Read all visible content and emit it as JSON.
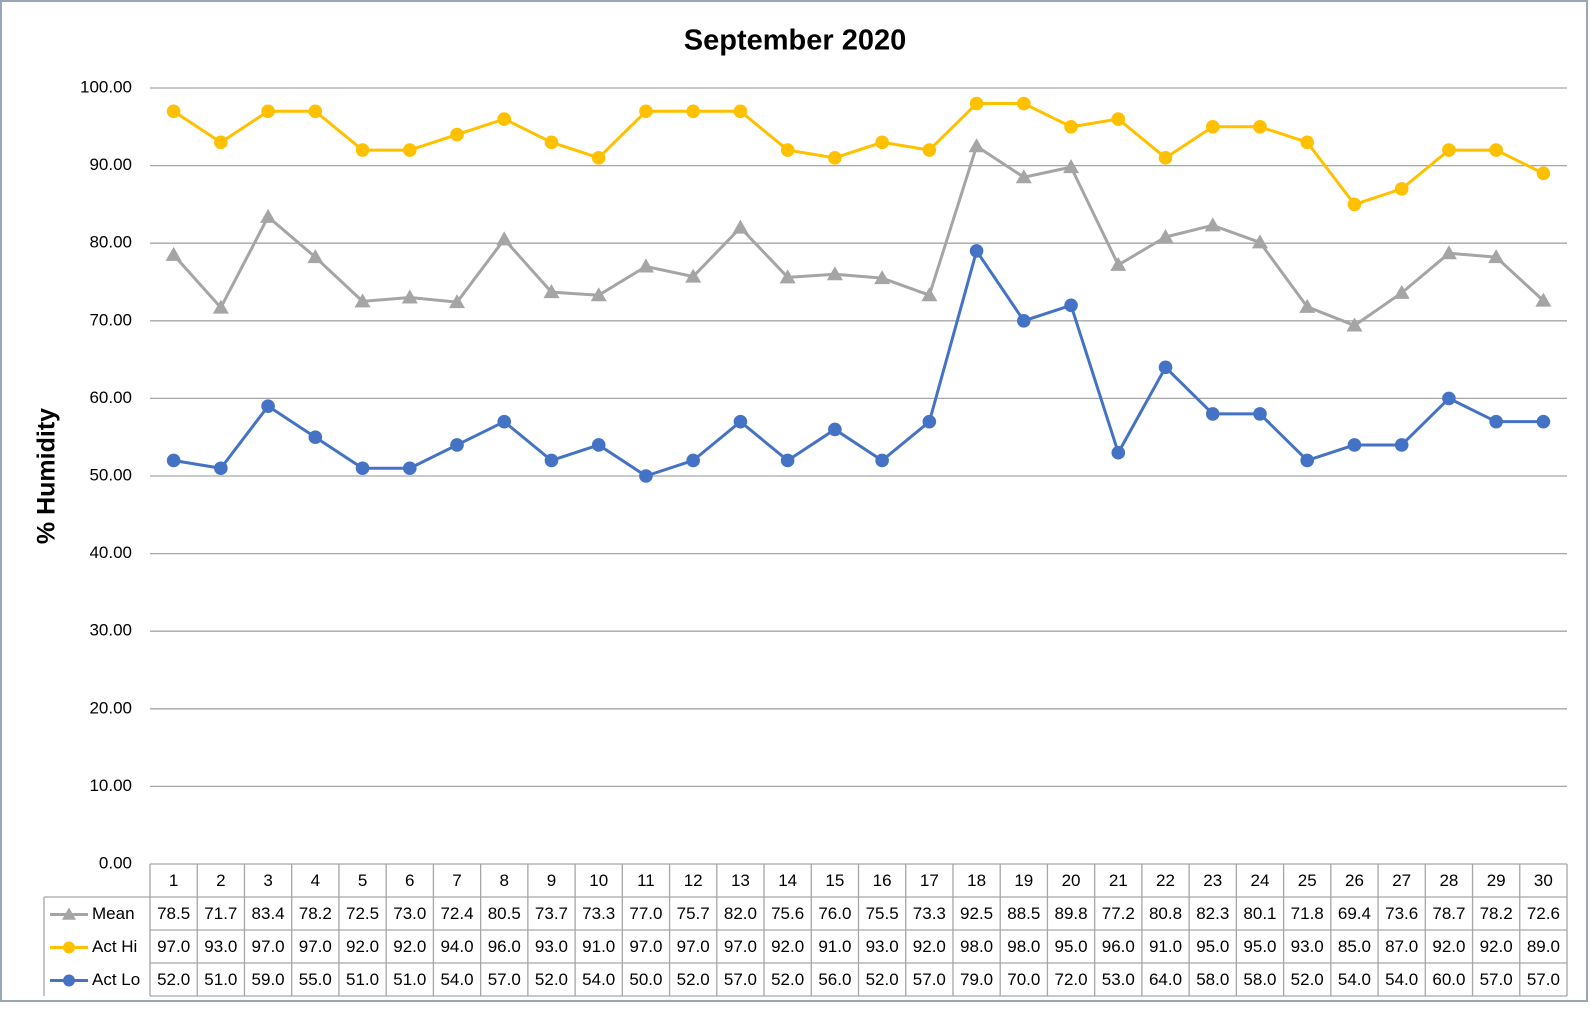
{
  "chart_data": {
    "type": "line",
    "title": "September 2020",
    "y_label": "% Humidity",
    "categories": [
      "1",
      "2",
      "3",
      "4",
      "5",
      "6",
      "7",
      "8",
      "9",
      "10",
      "11",
      "12",
      "13",
      "14",
      "15",
      "16",
      "17",
      "18",
      "19",
      "20",
      "21",
      "22",
      "23",
      "24",
      "25",
      "26",
      "27",
      "28",
      "29",
      "30"
    ],
    "series": [
      {
        "name": "Mean",
        "color": "#a5a5a5",
        "marker": "triangle",
        "values": [
          78.5,
          71.7,
          83.4,
          78.2,
          72.5,
          73.0,
          72.4,
          80.5,
          73.7,
          73.3,
          77.0,
          75.7,
          82.0,
          75.6,
          76.0,
          75.5,
          73.3,
          92.5,
          88.5,
          89.8,
          77.2,
          80.8,
          82.3,
          80.1,
          71.8,
          69.4,
          73.6,
          78.7,
          78.2,
          72.6
        ],
        "value_labels": [
          "78.5",
          "71.7",
          "83.4",
          "78.2",
          "72.5",
          "73.0",
          "72.4",
          "80.5",
          "73.7",
          "73.3",
          "77.0",
          "75.7",
          "82.0",
          "75.6",
          "76.0",
          "75.5",
          "73.3",
          "92.5",
          "88.5",
          "89.8",
          "77.2",
          "80.8",
          "82.3",
          "80.1",
          "71.8",
          "69.4",
          "73.6",
          "78.7",
          "78.2",
          "72.6"
        ]
      },
      {
        "name": "Act Hi",
        "color": "#ffc000",
        "marker": "circle",
        "values": [
          97,
          93,
          97,
          97,
          92,
          92,
          94,
          96,
          93,
          91,
          97,
          97,
          97,
          92,
          91,
          93,
          92,
          98,
          98,
          95,
          96,
          91,
          95,
          95,
          93,
          85,
          87,
          92,
          92,
          89
        ],
        "value_labels": [
          "97.0",
          "93.0",
          "97.0",
          "97.0",
          "92.0",
          "92.0",
          "94.0",
          "96.0",
          "93.0",
          "91.0",
          "97.0",
          "97.0",
          "97.0",
          "92.0",
          "91.0",
          "93.0",
          "92.0",
          "98.0",
          "98.0",
          "95.0",
          "96.0",
          "91.0",
          "95.0",
          "95.0",
          "93.0",
          "85.0",
          "87.0",
          "92.0",
          "92.0",
          "89.0"
        ]
      },
      {
        "name": "Act Lo",
        "color": "#4472c4",
        "marker": "circle",
        "values": [
          52,
          51,
          59,
          55,
          51,
          51,
          54,
          57,
          52,
          54,
          50,
          52,
          57,
          52,
          56,
          52,
          57,
          79,
          70,
          72,
          53,
          64,
          58,
          58,
          52,
          54,
          54,
          60,
          57,
          57
        ],
        "value_labels": [
          "52.0",
          "51.0",
          "59.0",
          "55.0",
          "51.0",
          "51.0",
          "54.0",
          "57.0",
          "52.0",
          "54.0",
          "50.0",
          "52.0",
          "57.0",
          "52.0",
          "56.0",
          "52.0",
          "57.0",
          "79.0",
          "70.0",
          "72.0",
          "53.0",
          "64.0",
          "58.0",
          "58.0",
          "52.0",
          "54.0",
          "54.0",
          "60.0",
          "57.0",
          "57.0"
        ]
      }
    ],
    "ylim": [
      0,
      100
    ],
    "yticks": [
      {
        "value": 0,
        "label": "0.00"
      },
      {
        "value": 10,
        "label": "10.00"
      },
      {
        "value": 20,
        "label": "20.00"
      },
      {
        "value": 30,
        "label": "30.00"
      },
      {
        "value": 40,
        "label": "40.00"
      },
      {
        "value": 50,
        "label": "50.00"
      },
      {
        "value": 60,
        "label": "60.00"
      },
      {
        "value": 70,
        "label": "70.00"
      },
      {
        "value": 80,
        "label": "80.00"
      },
      {
        "value": 90,
        "label": "90.00"
      },
      {
        "value": 100,
        "label": "100.00"
      }
    ],
    "grid": true,
    "data_table": true
  }
}
